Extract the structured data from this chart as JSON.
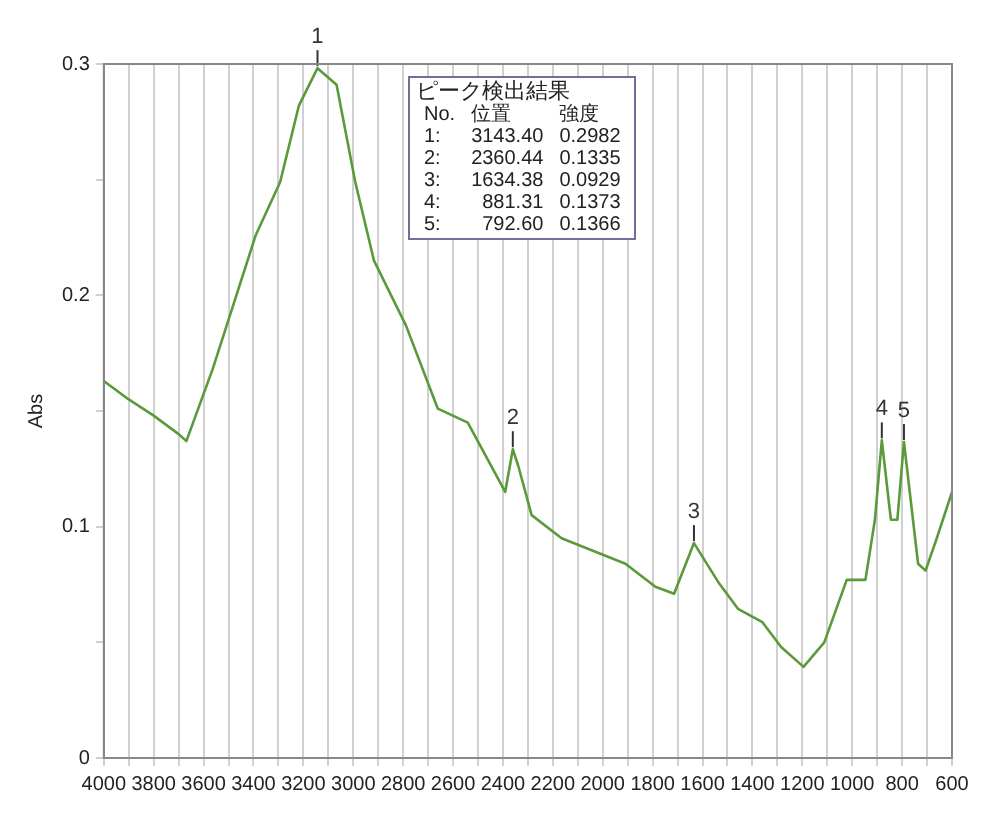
{
  "chart_data": {
    "type": "line",
    "ylabel": "Abs",
    "x": [
      4000,
      3900,
      3800,
      3700,
      3669,
      3564,
      3391,
      3293,
      3218,
      3143.4,
      3067,
      2992,
      2917,
      2789,
      2661,
      2541,
      2391,
      2360.44,
      2338,
      2285,
      2165,
      1909,
      1789,
      1714,
      1634.38,
      1533,
      1458,
      1360,
      1285,
      1195,
      1112,
      1022,
      947,
      909,
      881.31,
      845,
      819,
      792.6,
      736,
      706,
      661,
      600
    ],
    "series": [
      {
        "color": "#5a9a3a",
        "values": [
          0.163,
          0.155,
          0.148,
          0.14,
          0.137,
          0.168,
          0.226,
          0.249,
          0.282,
          0.2982,
          0.291,
          0.249,
          0.215,
          0.187,
          0.151,
          0.145,
          0.115,
          0.1335,
          0.126,
          0.105,
          0.095,
          0.084,
          0.074,
          0.071,
          0.0929,
          0.0754,
          0.0645,
          0.0587,
          0.048,
          0.0394,
          0.05,
          0.077,
          0.077,
          0.103,
          0.1373,
          0.103,
          0.103,
          0.1366,
          0.084,
          0.081,
          0.095,
          0.115
        ]
      }
    ],
    "xlim": [
      4000,
      600
    ],
    "xticks": [
      4000,
      {
        "value": 3900,
        "label": null
      },
      3800,
      {
        "value": 3700,
        "label": null
      },
      3600,
      {
        "value": 3500,
        "label": null
      },
      3400,
      {
        "value": 3300,
        "label": null
      },
      3200,
      {
        "value": 3100,
        "label": null
      },
      3000,
      {
        "value": 2900,
        "label": null
      },
      2800,
      {
        "value": 2700,
        "label": null
      },
      2600,
      {
        "value": 2500,
        "label": null
      },
      2400,
      {
        "value": 2300,
        "label": null
      },
      2200,
      {
        "value": 2100,
        "label": null
      },
      2000,
      {
        "value": 1900,
        "label": null
      },
      1800,
      {
        "value": 1700,
        "label": null
      },
      1600,
      {
        "value": 1500,
        "label": null
      },
      1400,
      {
        "value": 1300,
        "label": null
      },
      1200,
      {
        "value": 1100,
        "label": null
      },
      1000,
      {
        "value": 900,
        "label": null
      },
      800,
      {
        "value": 700,
        "label": null
      },
      600
    ],
    "ylim": [
      0,
      0.3
    ],
    "yticks": [
      0,
      {
        "value": 0.05,
        "label": null
      },
      0.1,
      {
        "value": 0.15,
        "label": null
      },
      0.2,
      {
        "value": 0.25,
        "label": null
      },
      0.3
    ],
    "grid": "x",
    "marker": "none",
    "line_style": "solid",
    "annotations": [
      {
        "text": "1",
        "x": 3143.4,
        "y": 0.2982
      },
      {
        "text": "2",
        "x": 2360.44,
        "y": 0.1335
      },
      {
        "text": "3",
        "x": 1634.38,
        "y": 0.0929
      },
      {
        "text": "4",
        "x": 881.31,
        "y": 0.1373
      },
      {
        "text": "5",
        "x": 792.6,
        "y": 0.1366
      },
      "ピーク検出結果",
      "No.",
      "位置",
      "強度",
      "1:",
      "3143.40",
      "0.2982",
      "2:",
      "2360.44",
      "0.1335",
      "3:",
      "1634.38",
      "0.0929",
      "4:",
      "881.31",
      "0.1373",
      "5:",
      "792.60",
      "0.1366"
    ]
  }
}
